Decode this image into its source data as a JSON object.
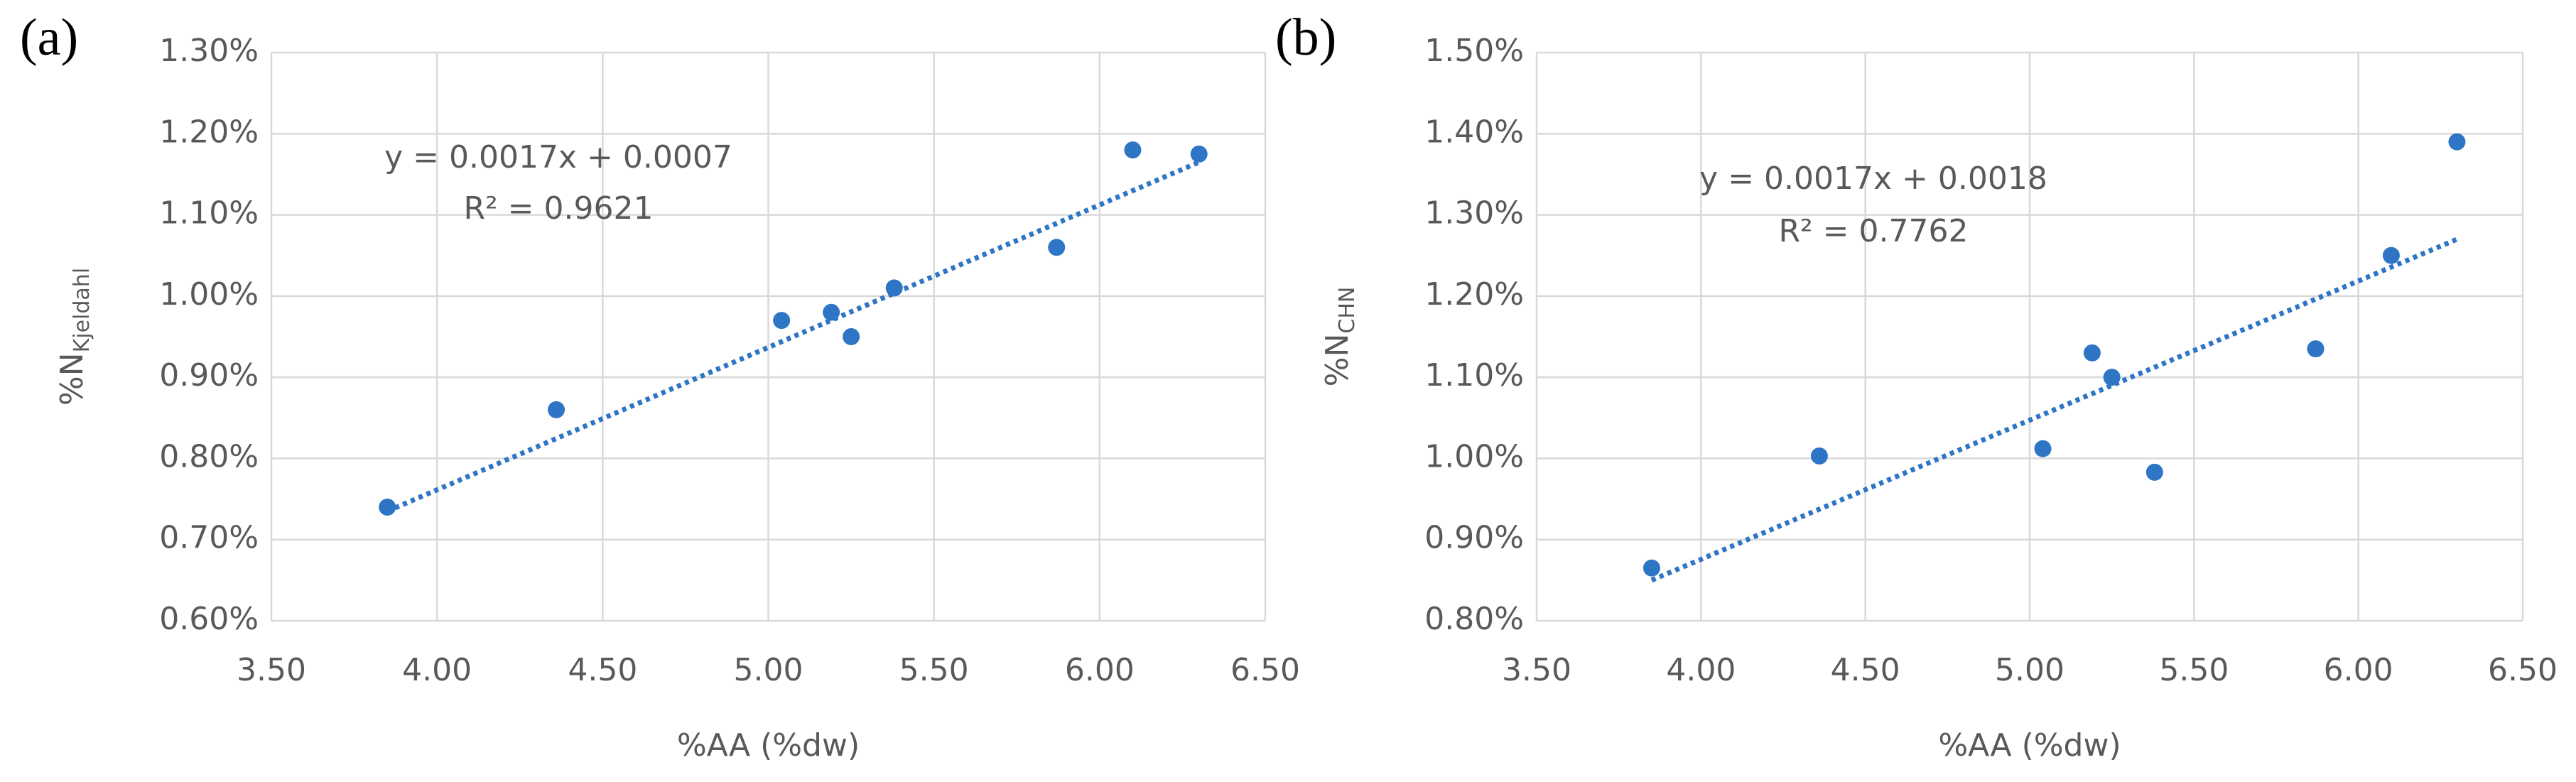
{
  "chart_data": [
    {
      "type": "scatter",
      "panel_label": "(a)",
      "x_label": "%AA (%dw)",
      "y_label": {
        "main": "%N",
        "sub": "Kjeldahl"
      },
      "x": [
        3.85,
        4.36,
        5.04,
        5.19,
        5.25,
        5.38,
        5.87,
        6.1,
        6.3
      ],
      "values": [
        0.74,
        0.86,
        0.97,
        0.98,
        0.95,
        1.01,
        1.06,
        1.18,
        1.175
      ],
      "color": "#2e75c6",
      "trendline": {
        "x": [
          3.85,
          6.3
        ],
        "values": [
          0.735,
          1.165
        ],
        "color": "#2e75c6"
      },
      "annotations": [
        "y = 0.0017x + 0.0007",
        "R² = 0.9621"
      ],
      "xlim": [
        3.5,
        6.5
      ],
      "xticks": [
        {
          "value": 3.5,
          "label": "3.50"
        },
        {
          "value": 4.0,
          "label": "4.00"
        },
        {
          "value": 4.5,
          "label": "4.50"
        },
        {
          "value": 5.0,
          "label": "5.00"
        },
        {
          "value": 5.5,
          "label": "5.50"
        },
        {
          "value": 6.0,
          "label": "6.00"
        },
        {
          "value": 6.5,
          "label": "6.50"
        }
      ],
      "ylim": [
        0.6,
        1.3
      ],
      "yticks": [
        {
          "value": 0.6,
          "label": "0.60%"
        },
        {
          "value": 0.7,
          "label": "0.70%"
        },
        {
          "value": 0.8,
          "label": "0.80%"
        },
        {
          "value": 0.9,
          "label": "0.90%"
        },
        {
          "value": 1.0,
          "label": "1.00%"
        },
        {
          "value": 1.1,
          "label": "1.10%"
        },
        {
          "value": 1.2,
          "label": "1.20%"
        },
        {
          "value": 1.3,
          "label": "1.30%"
        }
      ],
      "grid": true
    },
    {
      "type": "scatter",
      "panel_label": "(b)",
      "x_label": "%AA (%dw)",
      "y_label": {
        "main": "%N",
        "sub": "CHN"
      },
      "x": [
        3.85,
        4.36,
        5.04,
        5.19,
        5.25,
        5.38,
        5.87,
        6.1,
        6.3
      ],
      "values": [
        0.865,
        1.003,
        1.012,
        1.13,
        1.1,
        0.983,
        1.135,
        1.25,
        1.39
      ],
      "color": "#2e75c6",
      "trendline": {
        "x": [
          3.85,
          6.3
        ],
        "values": [
          0.85,
          1.27
        ],
        "color": "#2e75c6"
      },
      "annotations": [
        "y = 0.0017x + 0.0018",
        "R² = 0.7762"
      ],
      "xlim": [
        3.5,
        6.5
      ],
      "xticks": [
        {
          "value": 3.5,
          "label": "3.50"
        },
        {
          "value": 4.0,
          "label": "4.00"
        },
        {
          "value": 4.5,
          "label": "4.50"
        },
        {
          "value": 5.0,
          "label": "5.00"
        },
        {
          "value": 5.5,
          "label": "5.50"
        },
        {
          "value": 6.0,
          "label": "6.00"
        },
        {
          "value": 6.5,
          "label": "6.50"
        }
      ],
      "ylim": [
        0.8,
        1.5
      ],
      "yticks": [
        {
          "value": 0.8,
          "label": "0.80%"
        },
        {
          "value": 0.9,
          "label": "0.90%"
        },
        {
          "value": 1.0,
          "label": "1.00%"
        },
        {
          "value": 1.1,
          "label": "1.10%"
        },
        {
          "value": 1.2,
          "label": "1.20%"
        },
        {
          "value": 1.3,
          "label": "1.30%"
        },
        {
          "value": 1.4,
          "label": "1.40%"
        },
        {
          "value": 1.5,
          "label": "1.50%"
        }
      ],
      "grid": true
    }
  ]
}
